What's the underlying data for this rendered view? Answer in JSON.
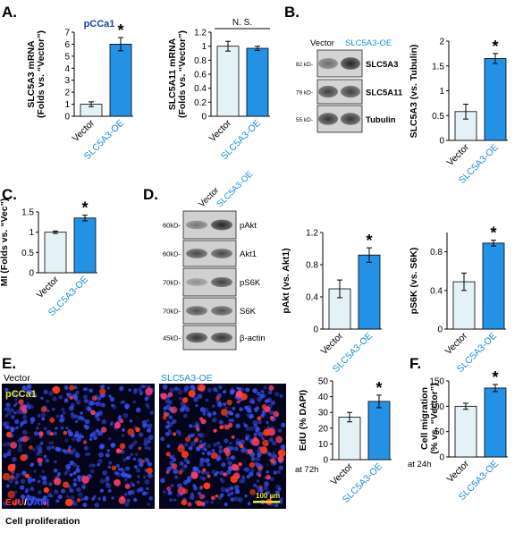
{
  "colors": {
    "vector_fill": "#e4f2f8",
    "oe_fill": "#2492e4",
    "oe_text": "#1b8fd6",
    "title_blue": "#1a3fb5",
    "edu_red": "#ff3c1e",
    "dapi_blue": "#3b55ff",
    "pcca1_yellow": "#e6e62a"
  },
  "panels": {
    "A": "A.",
    "B": "B.",
    "C": "C.",
    "D": "D.",
    "E": "E.",
    "F": "F."
  },
  "labels": {
    "vector": "Vector",
    "oe": "SLC5A3-OE",
    "pcca1": "pCCa1",
    "ns": "N. S.",
    "star": "*",
    "edu": "EdU",
    "slash": "/",
    "dapi": "DAPI",
    "scale": "100 µm",
    "cell_prolif": "Cell proliferation",
    "at72h": "at 72h",
    "at24h": "at 24h"
  },
  "blotB": {
    "header_vector": "Vector",
    "header_oe": "SLC5A3-OE",
    "rows": [
      {
        "kd": "82 kD-",
        "name": "SLC5A3"
      },
      {
        "kd": "79 kD-",
        "name": "SLC5A11"
      },
      {
        "kd": "55 kD-",
        "name": "Tubulin"
      }
    ]
  },
  "blotD": {
    "header_vector": "Vector",
    "header_oe": "SLC5A3-OE",
    "rows": [
      {
        "kd": "60kD-",
        "name": "pAkt"
      },
      {
        "kd": "60kD-",
        "name": "Akt1"
      },
      {
        "kd": "70kD-",
        "name": "pS6K"
      },
      {
        "kd": "70kD-",
        "name": "S6K"
      },
      {
        "kd": "45kD-",
        "name": "β-actin"
      }
    ]
  },
  "chart_data": [
    {
      "panel": "A",
      "type": "bar",
      "title": "pCCa1",
      "ylabel": [
        "SLC5A3 mRNA",
        "(Folds vs. “Vector”)"
      ],
      "categories": [
        "Vector",
        "SLC5A3-OE"
      ],
      "values": [
        1.0,
        6.0
      ],
      "errors": [
        0.2,
        0.55
      ],
      "ylim": [
        0,
        7
      ],
      "yticks": [
        "0",
        "1",
        "2",
        "3",
        "4",
        "5",
        "6",
        "7"
      ],
      "annotation": "*"
    },
    {
      "panel": "A",
      "type": "bar",
      "ylabel": [
        "SLC5A11 mRNA",
        "(Folds vs. “Vector”)"
      ],
      "categories": [
        "Vector",
        "SLC5A3-OE"
      ],
      "values": [
        1.0,
        0.97
      ],
      "errors": [
        0.07,
        0.03
      ],
      "ylim": [
        0,
        1.2
      ],
      "yticks": [
        "0",
        "0.2",
        "0.4",
        "0.6",
        "0.8",
        "1",
        "1.2"
      ],
      "annotation": "N. S."
    },
    {
      "panel": "B",
      "type": "bar",
      "ylabel": [
        "SLC5A3 (vs. Tubulin)"
      ],
      "categories": [
        "Vector",
        "SLC5A3-OE"
      ],
      "values": [
        0.58,
        1.65
      ],
      "errors": [
        0.15,
        0.1
      ],
      "ylim": [
        0,
        2
      ],
      "yticks": [
        "0",
        "0.5",
        "1",
        "1.5",
        "2"
      ],
      "annotation": "*"
    },
    {
      "panel": "C",
      "type": "bar",
      "ylabel": [
        "MI (Folds vs. “Vec”)"
      ],
      "categories": [
        "Vector",
        "SLC5A3-OE"
      ],
      "values": [
        1.0,
        1.35
      ],
      "errors": [
        0.03,
        0.07
      ],
      "ylim": [
        0,
        1.5
      ],
      "yticks": [
        "0",
        "0.5",
        "1",
        "1.5"
      ],
      "annotation": "*"
    },
    {
      "panel": "D",
      "type": "bar",
      "ylabel": [
        "pAkt (vs. Akt1)"
      ],
      "categories": [
        "Vector",
        "SLC5A3-OE"
      ],
      "values": [
        0.5,
        0.92
      ],
      "errors": [
        0.11,
        0.09
      ],
      "ylim": [
        0,
        1.2
      ],
      "yticks": [
        "0",
        "0.4",
        "0.8",
        "1.2"
      ],
      "annotation": "*"
    },
    {
      "panel": "D",
      "type": "bar",
      "ylabel": [
        "pS6K (vs. S6K)"
      ],
      "categories": [
        "Vector",
        "SLC5A3-OE"
      ],
      "values": [
        0.49,
        0.89
      ],
      "errors": [
        0.09,
        0.03
      ],
      "ylim": [
        0,
        1.0
      ],
      "yticks": [
        "0",
        "0.4",
        "0.8"
      ],
      "annotation": "*"
    },
    {
      "panel": "E",
      "type": "bar",
      "ylabel": [
        "EdU (% DAPI)"
      ],
      "categories": [
        "Vector",
        "SLC5A3-OE"
      ],
      "values": [
        27,
        37
      ],
      "errors": [
        3,
        4
      ],
      "ylim": [
        0,
        50
      ],
      "yticks": [
        "0",
        "10",
        "20",
        "30",
        "40",
        "50"
      ],
      "annotation": "*"
    },
    {
      "panel": "F",
      "type": "bar",
      "ylabel": [
        "Cell migration",
        "(% vs. “Vector”)"
      ],
      "categories": [
        "Vector",
        "SLC5A3-OE"
      ],
      "values": [
        100,
        136
      ],
      "errors": [
        6,
        7
      ],
      "ylim": [
        0,
        150
      ],
      "yticks": [
        "0",
        "50",
        "100",
        "150"
      ],
      "annotation": "*"
    }
  ]
}
